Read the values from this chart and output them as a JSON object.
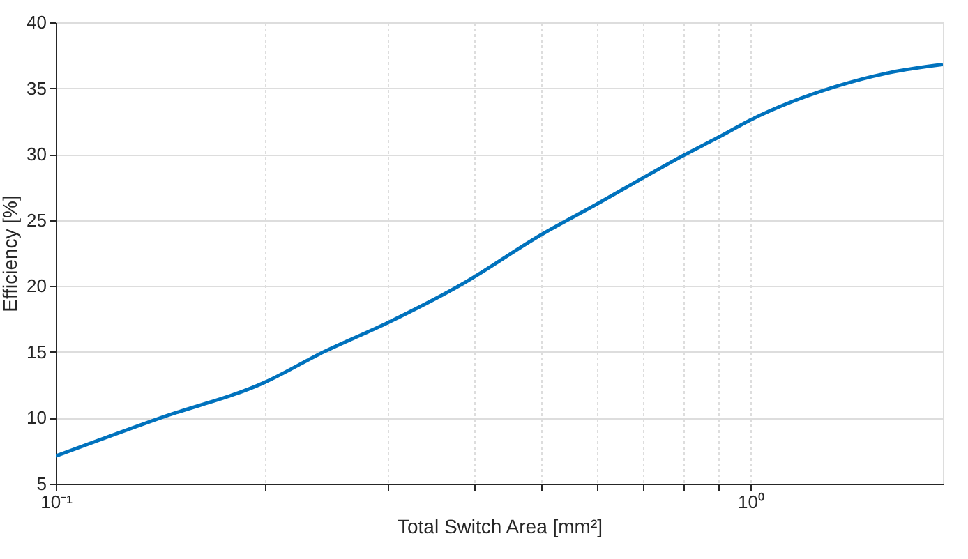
{
  "chart_data": {
    "type": "line",
    "xlabel": "Total Switch Area [mm²]",
    "ylabel": "Efficiency [%]",
    "x": [
      0.1,
      0.1416,
      0.2,
      0.243,
      0.3,
      0.386,
      0.5,
      0.6,
      0.7,
      0.8,
      0.9,
      1.0,
      1.32,
      1.59,
      1.89
    ],
    "series": [
      {
        "color": "#0072bd",
        "values": [
          7.1,
          10.0,
          12.7,
          15.0,
          17.2,
          20.2,
          23.9,
          26.2,
          28.2,
          29.9,
          31.3,
          32.6,
          35.1,
          36.2,
          36.8
        ]
      }
    ],
    "log": "x",
    "xlim": [
      0.1,
      1.89
    ],
    "ylim": [
      5,
      40
    ],
    "xticks": [
      {
        "value": 0.1,
        "label": "10⁻¹"
      },
      {
        "value": 0.2,
        "label": null
      },
      {
        "value": 0.3,
        "label": null
      },
      {
        "value": 0.4,
        "label": null
      },
      {
        "value": 0.5,
        "label": null
      },
      {
        "value": 0.6,
        "label": null
      },
      {
        "value": 0.7,
        "label": null
      },
      {
        "value": 0.8,
        "label": null
      },
      {
        "value": 0.9,
        "label": null
      },
      {
        "value": 1,
        "label": "10⁰"
      }
    ],
    "yticks": [
      5,
      10,
      15,
      20,
      25,
      30,
      35,
      40
    ],
    "grid": true,
    "line_style": "solid",
    "marker": "none"
  }
}
